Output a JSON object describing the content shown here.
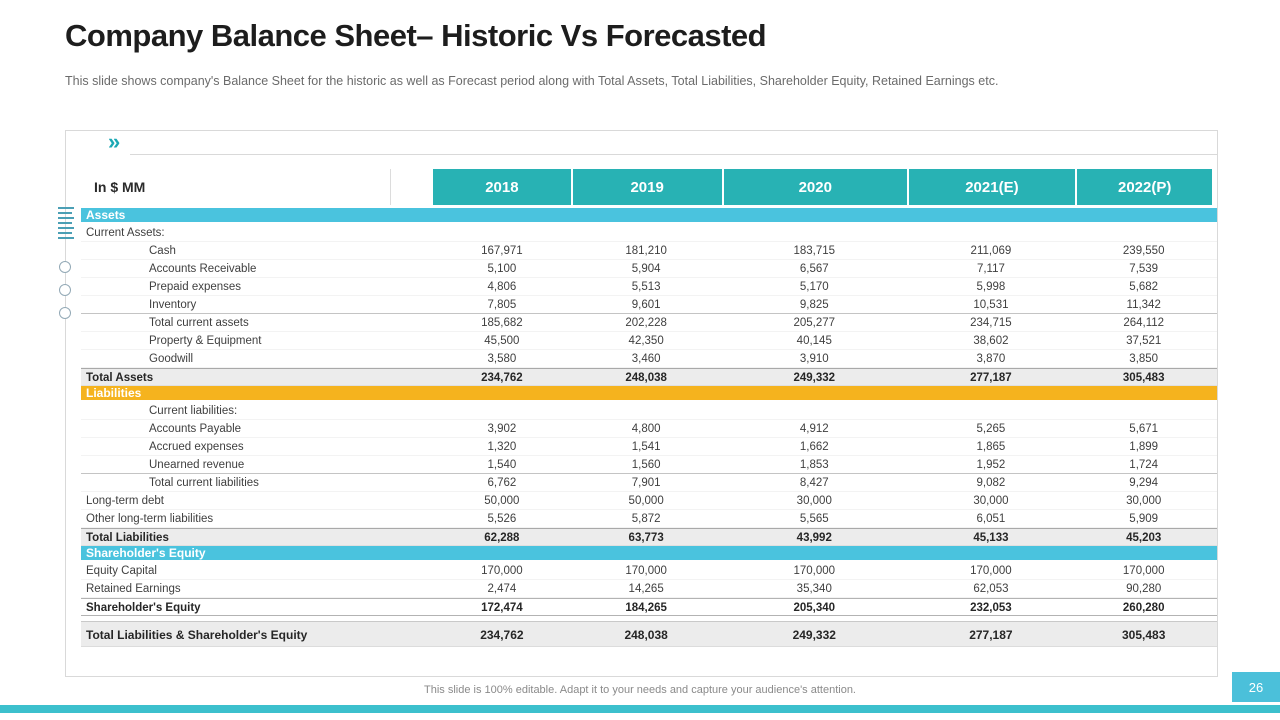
{
  "slide": {
    "title": "Company Balance Sheet– Historic Vs Forecasted",
    "subtitle": "This slide shows company's Balance Sheet for the historic as well as Forecast period along with Total Assets, Total Liabilities, Shareholder Equity, Retained Earnings etc.",
    "footer": "This slide is 100% editable. Adapt it to your needs and capture your audience's attention.",
    "page_number": "26",
    "chevron_icon": "»"
  },
  "colors": {
    "header_teal": "#28b2b4",
    "section_cyan": "#4ac3de",
    "section_amber": "#f5b31e",
    "total_row_gray": "#ececec",
    "bottom_bar_teal": "#3cc0cd",
    "page_box_cyan": "#4bc0da"
  },
  "table": {
    "unit_label": "In $ MM",
    "columns": [
      "2018",
      "2019",
      "2020",
      "2021(E)",
      "2022(P)"
    ],
    "rows": [
      {
        "type": "section",
        "style": "cyan",
        "label": "Assets"
      },
      {
        "type": "data",
        "indent": 0,
        "label": "Current Assets:",
        "values": [
          "",
          "",
          "",
          "",
          ""
        ]
      },
      {
        "type": "data",
        "indent": 1,
        "label": "Cash",
        "values": [
          "167,971",
          "181,210",
          "183,715",
          "211,069",
          "239,550"
        ]
      },
      {
        "type": "data",
        "indent": 1,
        "label": "Accounts Receivable",
        "values": [
          "5,100",
          "5,904",
          "6,567",
          "7,117",
          "7,539"
        ]
      },
      {
        "type": "data",
        "indent": 1,
        "label": "Prepaid expenses",
        "values": [
          "4,806",
          "5,513",
          "5,170",
          "5,998",
          "5,682"
        ]
      },
      {
        "type": "data",
        "indent": 1,
        "label": "Inventory",
        "values": [
          "7,805",
          "9,601",
          "9,825",
          "10,531",
          "11,342"
        ],
        "bb": true
      },
      {
        "type": "data",
        "indent": 1,
        "label": "Total current assets",
        "values": [
          "185,682",
          "202,228",
          "205,277",
          "234,715",
          "264,112"
        ]
      },
      {
        "type": "data",
        "indent": 1,
        "label": "Property & Equipment",
        "values": [
          "45,500",
          "42,350",
          "40,145",
          "38,602",
          "37,521"
        ]
      },
      {
        "type": "data",
        "indent": 1,
        "label": "Goodwill",
        "values": [
          "3,580",
          "3,460",
          "3,910",
          "3,870",
          "3,850"
        ]
      },
      {
        "type": "total",
        "indent": 0,
        "label": "Total Assets",
        "values": [
          "234,762",
          "248,038",
          "249,332",
          "277,187",
          "305,483"
        ]
      },
      {
        "type": "section",
        "style": "amber",
        "label": "Liabilities"
      },
      {
        "type": "data",
        "indent": 1,
        "label": "Current liabilities:",
        "values": [
          "",
          "",
          "",
          "",
          ""
        ]
      },
      {
        "type": "data",
        "indent": 1,
        "label": "Accounts Payable",
        "values": [
          "3,902",
          "4,800",
          "4,912",
          "5,265",
          "5,671"
        ]
      },
      {
        "type": "data",
        "indent": 1,
        "label": "Accrued expenses",
        "values": [
          "1,320",
          "1,541",
          "1,662",
          "1,865",
          "1,899"
        ]
      },
      {
        "type": "data",
        "indent": 1,
        "label": "Unearned revenue",
        "values": [
          "1,540",
          "1,560",
          "1,853",
          "1,952",
          "1,724"
        ],
        "bb": true
      },
      {
        "type": "data",
        "indent": 1,
        "label": "Total current liabilities",
        "values": [
          "6,762",
          "7,901",
          "8,427",
          "9,082",
          "9,294"
        ]
      },
      {
        "type": "data",
        "indent": 0,
        "label": "Long-term debt",
        "values": [
          "50,000",
          "50,000",
          "30,000",
          "30,000",
          "30,000"
        ]
      },
      {
        "type": "data",
        "indent": 0,
        "label": "Other long-term liabilities",
        "values": [
          "5,526",
          "5,872",
          "5,565",
          "6,051",
          "5,909"
        ]
      },
      {
        "type": "total",
        "indent": 0,
        "label": "Total Liabilities",
        "values": [
          "62,288",
          "63,773",
          "43,992",
          "45,133",
          "45,203"
        ]
      },
      {
        "type": "section",
        "style": "cyan",
        "label": "Shareholder's Equity"
      },
      {
        "type": "data",
        "indent": 0,
        "label": "Equity Capital",
        "values": [
          "170,000",
          "170,000",
          "170,000",
          "170,000",
          "170,000"
        ]
      },
      {
        "type": "data",
        "indent": 0,
        "label": "Retained Earnings",
        "values": [
          "2,474",
          "14,265",
          "35,340",
          "62,053",
          "90,280"
        ]
      },
      {
        "type": "bold",
        "indent": 0,
        "label": "Shareholder's Equity",
        "values": [
          "172,474",
          "184,265",
          "205,340",
          "232,053",
          "260,280"
        ]
      },
      {
        "type": "grand",
        "indent": 0,
        "label": "Total Liabilities & Shareholder's Equity",
        "values": [
          "234,762",
          "248,038",
          "249,332",
          "277,187",
          "305,483"
        ]
      }
    ]
  }
}
